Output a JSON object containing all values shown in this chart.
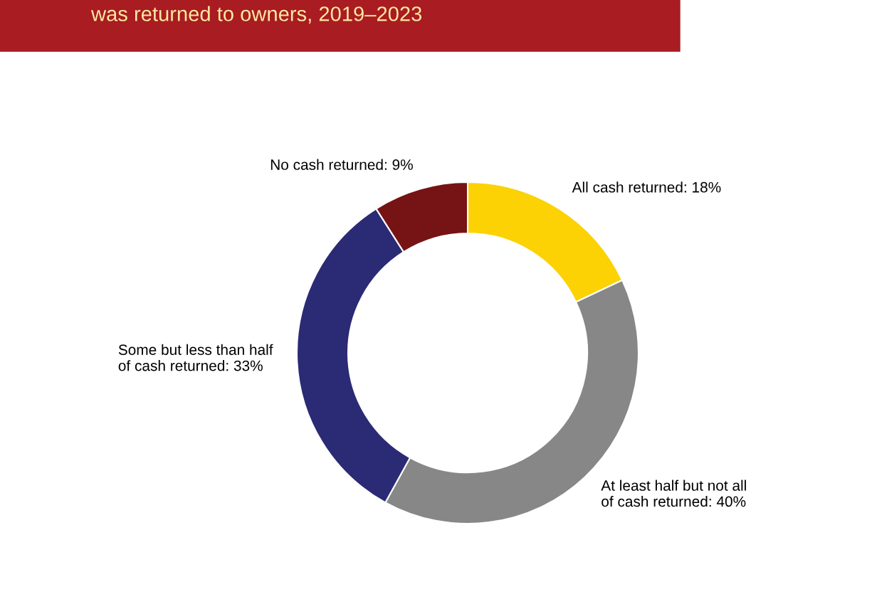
{
  "chart_data": {
    "type": "donut",
    "title": "was returned to owners, 2019–2023",
    "categories": [
      "All cash returned: 18%",
      "At least half but not all\nof cash returned: 40%",
      "Some but less than half\nof cash returned: 33%",
      "No cash returned: 9%"
    ],
    "values": [
      18,
      40,
      33,
      9
    ],
    "colors": [
      "#fcd205",
      "#878787",
      "#2b2a74",
      "#761315"
    ]
  }
}
